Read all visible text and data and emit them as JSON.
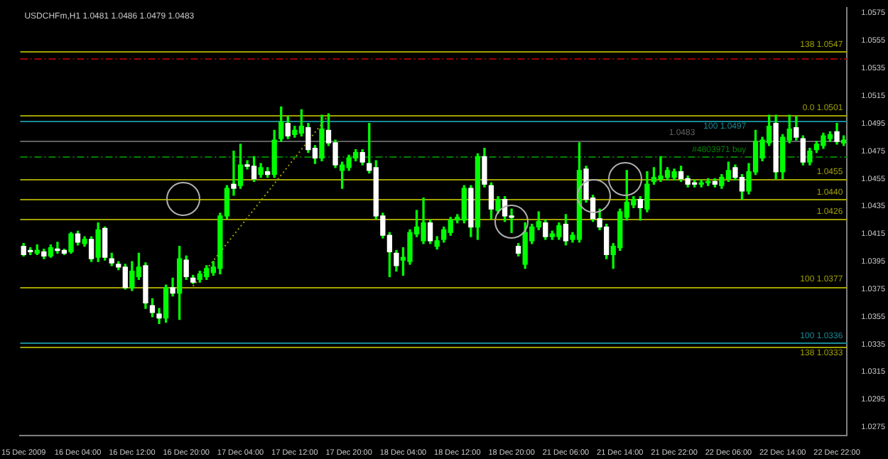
{
  "chart_data": {
    "type": "candlestick",
    "title": "USDCHFm,H1 1.0481 1.0486 1.0479 1.0483",
    "categories": [
      "15 Dec 2009",
      null,
      null,
      null,
      null,
      null,
      null,
      null,
      "16 Dec 04:00",
      null,
      null,
      null,
      null,
      null,
      null,
      null,
      "16 Dec 12:00",
      null,
      null,
      null,
      null,
      null,
      null,
      null,
      "16 Dec 20:00",
      null,
      null,
      null,
      null,
      null,
      null,
      null,
      "17 Dec 04:00",
      null,
      null,
      null,
      null,
      null,
      null,
      null,
      "17 Dec 12:00",
      null,
      null,
      null,
      null,
      null,
      null,
      null,
      "17 Dec 20:00",
      null,
      null,
      null,
      null,
      null,
      null,
      null,
      "18 Dec 04:00",
      null,
      null,
      null,
      null,
      null,
      null,
      null,
      "18 Dec 12:00",
      null,
      null,
      null,
      null,
      null,
      null,
      null,
      "18 Dec 20:00",
      null,
      null,
      null,
      null,
      null,
      null,
      null,
      "21 Dec 06:00",
      null,
      null,
      null,
      null,
      null,
      null,
      null,
      "21 Dec 14:00",
      null,
      null,
      null,
      null,
      null,
      null,
      null,
      "21 Dec 22:00",
      null,
      null,
      null,
      null,
      null,
      null,
      null,
      "22 Dec 06:00",
      null,
      null,
      null,
      null,
      null,
      null,
      null,
      "22 Dec 14:00",
      null,
      null,
      null,
      null,
      null,
      null,
      null,
      "22 Dec 22:00",
      null
    ],
    "ohlc": [
      [
        1.0406,
        1.0408,
        1.0399,
        1.04
      ],
      [
        1.0403,
        1.0405,
        1.04,
        1.0402
      ],
      [
        1.0401,
        1.0407,
        1.04,
        1.0403
      ],
      [
        1.0402,
        1.0404,
        1.0397,
        1.0399
      ],
      [
        1.0399,
        1.0407,
        1.0398,
        1.0405
      ],
      [
        1.0404,
        1.0409,
        1.0401,
        1.0403
      ],
      [
        1.0403,
        1.0404,
        1.04,
        1.0401
      ],
      [
        1.0402,
        1.0416,
        1.0401,
        1.0415
      ],
      [
        1.0415,
        1.0417,
        1.0407,
        1.0409
      ],
      [
        1.0408,
        1.0413,
        1.0406,
        1.0411
      ],
      [
        1.0411,
        1.0413,
        1.0395,
        1.0397
      ],
      [
        1.0398,
        1.0423,
        1.0395,
        1.0418
      ],
      [
        1.0419,
        1.042,
        1.0396,
        1.0398
      ],
      [
        1.0397,
        1.0401,
        1.0392,
        1.0394
      ],
      [
        1.0393,
        1.0395,
        1.0389,
        1.0391
      ],
      [
        1.0391,
        1.0393,
        1.0375,
        1.0376
      ],
      [
        1.0376,
        1.0395,
        1.0374,
        1.0388
      ],
      [
        1.0384,
        1.0401,
        1.0382,
        1.0391
      ],
      [
        1.0392,
        1.0394,
        1.0361,
        1.0365
      ],
      [
        1.0363,
        1.0368,
        1.0355,
        1.0358
      ],
      [
        1.0357,
        1.0361,
        1.035,
        1.0354
      ],
      [
        1.0354,
        1.0378,
        1.0351,
        1.0376
      ],
      [
        1.0376,
        1.0383,
        1.037,
        1.0372
      ],
      [
        1.0372,
        1.0406,
        1.0353,
        1.0397
      ],
      [
        1.0396,
        1.0399,
        1.0382,
        1.0384
      ],
      [
        1.0383,
        1.0385,
        1.0379,
        1.038
      ],
      [
        1.0382,
        1.0388,
        1.038,
        1.0386
      ],
      [
        1.0384,
        1.0392,
        1.0382,
        1.039
      ],
      [
        1.0387,
        1.0395,
        1.0385,
        1.0391
      ],
      [
        1.039,
        1.043,
        1.0386,
        1.0428
      ],
      [
        1.0428,
        1.045,
        1.0426,
        1.0448
      ],
      [
        1.0451,
        1.0475,
        1.0443,
        1.0448
      ],
      [
        1.045,
        1.048,
        1.0448,
        1.0465
      ],
      [
        1.0465,
        1.0468,
        1.0462,
        1.0464
      ],
      [
        1.0464,
        1.0471,
        1.0453,
        1.0455
      ],
      [
        1.0458,
        1.0466,
        1.0456,
        1.0463
      ],
      [
        1.046,
        1.0463,
        1.0456,
        1.0458
      ],
      [
        1.0458,
        1.049,
        1.0456,
        1.0483
      ],
      [
        1.0484,
        1.0507,
        1.0482,
        1.0496
      ],
      [
        1.0495,
        1.05,
        1.0484,
        1.0486
      ],
      [
        1.0487,
        1.0493,
        1.0485,
        1.049
      ],
      [
        1.0488,
        1.0505,
        1.0486,
        1.0493
      ],
      [
        1.0492,
        1.0495,
        1.0474,
        1.0476
      ],
      [
        1.0477,
        1.0479,
        1.0466,
        1.047
      ],
      [
        1.047,
        1.0501,
        1.0468,
        1.0491
      ],
      [
        1.049,
        1.0502,
        1.0479,
        1.0481
      ],
      [
        1.0481,
        1.0483,
        1.0463,
        1.0465
      ],
      [
        1.0461,
        1.0467,
        1.0448,
        1.0465
      ],
      [
        1.0463,
        1.0472,
        1.0461,
        1.047
      ],
      [
        1.047,
        1.0476,
        1.0468,
        1.0474
      ],
      [
        1.0474,
        1.0476,
        1.0465,
        1.0467
      ],
      [
        1.0466,
        1.0495,
        1.0459,
        1.0461
      ],
      [
        1.0463,
        1.0468,
        1.0426,
        1.0428
      ],
      [
        1.0428,
        1.043,
        1.0412,
        1.0414
      ],
      [
        1.0414,
        1.0416,
        1.0384,
        1.0402
      ],
      [
        1.0401,
        1.0403,
        1.0388,
        1.0392
      ],
      [
        1.0396,
        1.0405,
        1.0385,
        1.0398
      ],
      [
        1.0395,
        1.0418,
        1.0393,
        1.0416
      ],
      [
        1.0415,
        1.0432,
        1.0413,
        1.042
      ],
      [
        1.041,
        1.0441,
        1.0408,
        1.0423
      ],
      [
        1.0423,
        1.0425,
        1.0408,
        1.041
      ],
      [
        1.0406,
        1.0413,
        1.0404,
        1.041
      ],
      [
        1.0411,
        1.042,
        1.0409,
        1.0418
      ],
      [
        1.0416,
        1.0427,
        1.0414,
        1.0425
      ],
      [
        1.0425,
        1.0429,
        1.0423,
        1.0427
      ],
      [
        1.0425,
        1.045,
        1.0423,
        1.0448
      ],
      [
        1.0448,
        1.045,
        1.0413,
        1.042
      ],
      [
        1.042,
        1.0473,
        1.0411,
        1.0471
      ],
      [
        1.0471,
        1.0477,
        1.0449,
        1.0451
      ],
      [
        1.045,
        1.0452,
        1.0426,
        1.0433
      ],
      [
        1.0432,
        1.0442,
        1.043,
        1.044
      ],
      [
        1.044,
        1.0442,
        1.0424,
        1.0428
      ],
      [
        1.0428,
        1.0433,
        1.0416,
        1.0427
      ],
      [
        1.0406,
        1.0408,
        1.0399,
        1.0401
      ],
      [
        1.0393,
        1.0423,
        1.039,
        1.0416
      ],
      [
        1.041,
        1.0422,
        1.0408,
        1.042
      ],
      [
        1.042,
        1.0431,
        1.0418,
        1.0424
      ],
      [
        1.0423,
        1.0425,
        1.0411,
        1.0413
      ],
      [
        1.0413,
        1.0417,
        1.0411,
        1.0415
      ],
      [
        1.0413,
        1.0423,
        1.0411,
        1.0421
      ],
      [
        1.0422,
        1.0429,
        1.0407,
        1.041
      ],
      [
        1.0411,
        1.0416,
        1.0409,
        1.0414
      ],
      [
        1.0411,
        1.0481,
        1.0409,
        1.0461
      ],
      [
        1.0462,
        1.0464,
        1.0438,
        1.044
      ],
      [
        1.0441,
        1.0443,
        1.0424,
        1.0426
      ],
      [
        1.0426,
        1.0433,
        1.0418,
        1.042
      ],
      [
        1.042,
        1.0422,
        1.0397,
        1.04
      ],
      [
        1.04,
        1.0408,
        1.039,
        1.0406
      ],
      [
        1.0405,
        1.0433,
        1.0403,
        1.0431
      ],
      [
        1.0427,
        1.0461,
        1.0425,
        1.0438
      ],
      [
        1.0436,
        1.0442,
        1.0434,
        1.044
      ],
      [
        1.044,
        1.0442,
        1.0425,
        1.0434
      ],
      [
        1.0433,
        1.046,
        1.0431,
        1.0451
      ],
      [
        1.0453,
        1.0463,
        1.0451,
        1.0456
      ],
      [
        1.0455,
        1.0471,
        1.0453,
        1.0457
      ],
      [
        1.0456,
        1.0463,
        1.0454,
        1.0461
      ],
      [
        1.0456,
        1.0462,
        1.0454,
        1.046
      ],
      [
        1.046,
        1.0464,
        1.0453,
        1.0455
      ],
      [
        1.0455,
        1.0457,
        1.0449,
        1.0451
      ],
      [
        1.0452,
        1.0454,
        1.0449,
        1.0451
      ],
      [
        1.0451,
        1.0454,
        1.0449,
        1.0452
      ],
      [
        1.0452,
        1.0455,
        1.045,
        1.0453
      ],
      [
        1.0453,
        1.0455,
        1.0449,
        1.0451
      ],
      [
        1.045,
        1.0458,
        1.0448,
        1.0456
      ],
      [
        1.0455,
        1.0467,
        1.0453,
        1.0461
      ],
      [
        1.0463,
        1.0465,
        1.0454,
        1.0456
      ],
      [
        1.0456,
        1.0458,
        1.044,
        1.0446
      ],
      [
        1.0446,
        1.0466,
        1.0444,
        1.046
      ],
      [
        1.046,
        1.049,
        1.0458,
        1.0482
      ],
      [
        1.047,
        1.0485,
        1.0468,
        1.0483
      ],
      [
        1.0481,
        1.0501,
        1.0479,
        1.0493
      ],
      [
        1.0495,
        1.0501,
        1.0455,
        1.046
      ],
      [
        1.046,
        1.0487,
        1.0455,
        1.0485
      ],
      [
        1.0483,
        1.0501,
        1.0481,
        1.0491
      ],
      [
        1.0492,
        1.05,
        1.0483,
        1.0485
      ],
      [
        1.0484,
        1.0486,
        1.0465,
        1.0467
      ],
      [
        1.0467,
        1.0477,
        1.0465,
        1.0475
      ],
      [
        1.0476,
        1.0482,
        1.0474,
        1.048
      ],
      [
        1.0479,
        1.0488,
        1.0477,
        1.0486
      ],
      [
        1.0484,
        1.0489,
        1.0482,
        1.0487
      ],
      [
        1.0489,
        1.0495,
        1.048,
        1.0482
      ],
      [
        1.0481,
        1.0486,
        1.0479,
        1.0483
      ]
    ],
    "color": "#00ff00",
    "colors": [
      "#ffffff",
      "#ffffff",
      "#00ff00",
      "#ffffff",
      "#00ff00",
      "#ffffff",
      "#ffffff",
      "#00ff00",
      "#ffffff",
      "#00ff00",
      "#ffffff",
      "#00ff00",
      "#ffffff",
      "#ffffff",
      "#ffffff",
      "#ffffff",
      "#00ff00",
      "#00ff00",
      "#ffffff",
      "#ffffff",
      "#ffffff",
      "#00ff00",
      "#ffffff",
      "#00ff00",
      "#ffffff",
      "#ffffff",
      "#00ff00",
      "#00ff00",
      "#00ff00",
      "#00ff00",
      "#00ff00",
      "#ffffff",
      "#00ff00",
      "#ffffff",
      "#ffffff",
      "#00ff00",
      "#ffffff",
      "#00ff00",
      "#00ff00",
      "#ffffff",
      "#00ff00",
      "#00ff00",
      "#ffffff",
      "#ffffff",
      "#00ff00",
      "#ffffff",
      "#ffffff",
      "#00ff00",
      "#00ff00",
      "#00ff00",
      "#ffffff",
      "#ffffff",
      "#ffffff",
      "#ffffff",
      "#ffffff",
      "#ffffff",
      "#00ff00",
      "#00ff00",
      "#00ff00",
      "#00ff00",
      "#ffffff",
      "#00ff00",
      "#00ff00",
      "#00ff00",
      "#00ff00",
      "#00ff00",
      "#ffffff",
      "#00ff00",
      "#ffffff",
      "#ffffff",
      "#00ff00",
      "#ffffff",
      "#ffffff",
      "#ffffff",
      "#00ff00",
      "#00ff00",
      "#00ff00",
      "#ffffff",
      "#00ff00",
      "#00ff00",
      "#ffffff",
      "#00ff00",
      "#00ff00",
      "#ffffff",
      "#ffffff",
      "#ffffff",
      "#ffffff",
      "#00ff00",
      "#00ff00",
      "#00ff00",
      "#00ff00",
      "#ffffff",
      "#00ff00",
      "#00ff00",
      "#00ff00",
      "#00ff00",
      "#00ff00",
      "#ffffff",
      "#ffffff",
      "#ffffff",
      "#00ff00",
      "#00ff00",
      "#ffffff",
      "#00ff00",
      "#00ff00",
      "#ffffff",
      "#ffffff",
      "#00ff00",
      "#00ff00",
      "#00ff00",
      "#00ff00",
      "#ffffff",
      "#00ff00",
      "#00ff00",
      "#ffffff",
      "#ffffff",
      "#00ff00",
      "#00ff00",
      "#00ff00",
      "#00ff00",
      "#ffffff",
      "#00ff00"
    ],
    "series": [
      {
        "type": "line",
        "color": "#a0a000",
        "line_style": "dotted",
        "values": [
          null,
          null,
          null,
          null,
          null,
          null,
          null,
          null,
          null,
          null,
          null,
          null,
          null,
          null,
          null,
          null,
          null,
          null,
          null,
          null,
          null,
          null,
          null,
          null,
          null,
          1.0377,
          null,
          null,
          null,
          null,
          null,
          null,
          null,
          null,
          null,
          null,
          null,
          null,
          null,
          null,
          null,
          null,
          null,
          null,
          null,
          1.0501,
          null,
          null,
          null,
          null,
          null,
          null,
          null,
          null,
          null,
          null,
          null,
          null,
          null,
          null,
          null,
          null,
          null,
          null,
          null,
          null,
          null,
          null,
          null,
          null,
          null,
          null,
          null,
          null,
          null,
          null,
          null,
          null,
          null,
          null,
          null,
          null,
          null,
          null,
          null,
          null,
          null,
          null,
          null,
          null,
          null,
          null,
          null,
          null,
          null,
          null,
          null,
          null,
          null,
          null,
          null,
          null,
          null,
          null,
          null,
          null,
          null,
          null,
          null,
          null,
          null,
          null,
          null,
          null,
          null,
          null,
          null,
          null,
          null,
          null,
          null,
          null
        ]
      }
    ],
    "ylim": [
      1.0269,
      1.0579
    ],
    "yticks": [
      1.0275,
      1.0295,
      1.0315,
      1.0335,
      1.0355,
      1.0375,
      1.0395,
      1.0415,
      1.0435,
      1.0455,
      1.0475,
      1.0495,
      1.0515,
      1.0535,
      1.0555,
      1.0575
    ],
    "ref_lines": [
      {
        "axis": "y",
        "value": 1.0547,
        "label": "138 1.0547",
        "color": "#a0a000"
      },
      {
        "axis": "y",
        "value": 1.0542,
        "color": "#a00000",
        "line_style": "dashed"
      },
      {
        "axis": "y",
        "value": 1.0501,
        "label": "0.0 1.0501",
        "color": "#a0a000"
      },
      {
        "axis": "y",
        "value": 1.0497,
        "label": "100 1.0497",
        "color": "#1a8a96"
      },
      {
        "axis": "y",
        "value": 1.0483,
        "label": "1.0483",
        "color": "#606060"
      },
      {
        "axis": "y",
        "value": 1.0471,
        "label": "#4803971 buy",
        "color": "#008000",
        "line_style": "dashed"
      },
      {
        "axis": "y",
        "value": 1.0455,
        "label": "1.0455",
        "color": "#a0a000"
      },
      {
        "axis": "y",
        "value": 1.044,
        "label": "1.0440",
        "color": "#a0a000"
      },
      {
        "axis": "y",
        "value": 1.0426,
        "label": "1.0426",
        "color": "#a0a000"
      },
      {
        "axis": "y",
        "value": 1.0377,
        "label": "100 1.0377",
        "color": "#a0a000"
      },
      {
        "axis": "y",
        "value": 1.0336,
        "label": "100 1.0336",
        "color": "#1a8a96"
      },
      {
        "axis": "y",
        "value": 1.0333,
        "label": "138 1.0333",
        "color": "#a0a000"
      }
    ]
  }
}
